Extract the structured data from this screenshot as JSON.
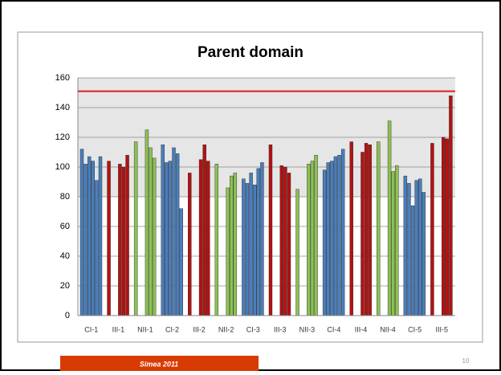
{
  "chart_data": {
    "type": "grouped_bar",
    "title": "Parent domain",
    "categories": [
      "CI-1",
      "III-1",
      "NII-1",
      "CI-2",
      "III-2",
      "NII-2",
      "CI-3",
      "III-3",
      "NII-3",
      "CI-4",
      "III-4",
      "NII-4",
      "CI-5",
      "III-5"
    ],
    "colors": [
      "#4a7ebb",
      "#b31212",
      "#8cc152",
      "#4a7ebb",
      "#b31212",
      "#8cc152",
      "#4a7ebb",
      "#b31212",
      "#8cc152",
      "#4a7ebb",
      "#b31212",
      "#8cc152",
      "#4a7ebb",
      "#b31212"
    ],
    "values": [
      [
        112,
        102,
        107,
        104,
        91,
        107
      ],
      [
        104,
        null,
        null,
        102,
        100,
        108
      ],
      [
        117,
        null,
        null,
        125,
        113,
        106
      ],
      [
        115,
        103,
        104,
        113,
        109,
        72
      ],
      [
        96,
        null,
        null,
        105,
        115,
        104
      ],
      [
        102,
        null,
        null,
        86,
        94,
        96
      ],
      [
        92,
        89,
        96,
        88,
        99,
        103
      ],
      [
        115,
        null,
        null,
        101,
        100,
        96
      ],
      [
        85,
        null,
        null,
        102,
        104,
        108
      ],
      [
        98,
        103,
        104,
        107,
        108,
        112
      ],
      [
        117,
        null,
        null,
        110,
        116,
        115
      ],
      [
        117,
        null,
        null,
        131,
        97,
        101
      ],
      [
        94,
        89,
        74,
        91,
        92,
        83
      ],
      [
        116,
        null,
        null,
        120,
        119,
        148
      ]
    ],
    "ylim": [
      0,
      160
    ],
    "yticks": [
      0,
      20,
      40,
      60,
      80,
      100,
      120,
      140,
      160
    ],
    "grid": true,
    "reference_line": {
      "value": 151,
      "color": "#e31a1a"
    },
    "shaded_range": [
      80,
      160
    ]
  },
  "footer": {
    "text": "Simea 2011",
    "page": "10"
  }
}
